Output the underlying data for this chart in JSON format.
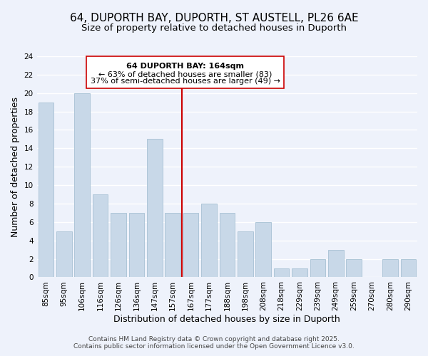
{
  "title": "64, DUPORTH BAY, DUPORTH, ST AUSTELL, PL26 6AE",
  "subtitle": "Size of property relative to detached houses in Duporth",
  "xlabel": "Distribution of detached houses by size in Duporth",
  "ylabel": "Number of detached properties",
  "bar_labels": [
    "85sqm",
    "95sqm",
    "106sqm",
    "116sqm",
    "126sqm",
    "136sqm",
    "147sqm",
    "157sqm",
    "167sqm",
    "177sqm",
    "188sqm",
    "198sqm",
    "208sqm",
    "218sqm",
    "229sqm",
    "239sqm",
    "249sqm",
    "259sqm",
    "270sqm",
    "280sqm",
    "290sqm"
  ],
  "bar_values": [
    19,
    5,
    20,
    9,
    7,
    7,
    15,
    7,
    7,
    8,
    7,
    5,
    6,
    1,
    1,
    2,
    3,
    2,
    0,
    2,
    2
  ],
  "bar_color": "#c8d8e8",
  "bar_edge_color": "#aec6d8",
  "background_color": "#eef2fb",
  "grid_color": "#ffffff",
  "ylim": [
    0,
    24
  ],
  "yticks": [
    0,
    2,
    4,
    6,
    8,
    10,
    12,
    14,
    16,
    18,
    20,
    22,
    24
  ],
  "vline_x": 7.5,
  "vline_color": "#cc0000",
  "annotation_title": "64 DUPORTH BAY: 164sqm",
  "annotation_line1": "← 63% of detached houses are smaller (83)",
  "annotation_line2": "37% of semi-detached houses are larger (49) →",
  "footer_line1": "Contains HM Land Registry data © Crown copyright and database right 2025.",
  "footer_line2": "Contains public sector information licensed under the Open Government Licence v3.0.",
  "title_fontsize": 11,
  "subtitle_fontsize": 9.5,
  "xlabel_fontsize": 9,
  "ylabel_fontsize": 9,
  "tick_fontsize": 7.5,
  "annotation_fontsize": 8,
  "footer_fontsize": 6.5
}
